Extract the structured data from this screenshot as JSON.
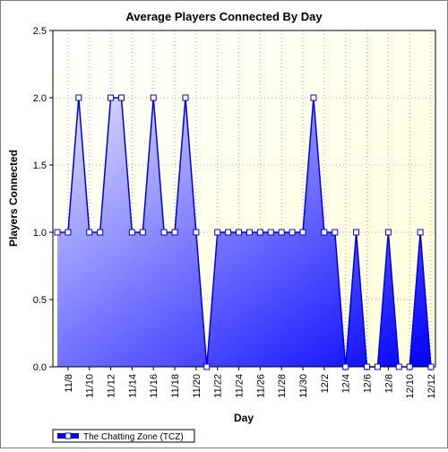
{
  "chart_data": {
    "type": "area",
    "title": "Average Players Connected By Day",
    "xlabel": "Day",
    "ylabel": "Players Connected",
    "ylim": [
      0,
      2.5
    ],
    "yticks": [
      "0.0",
      "0.5",
      "1.0",
      "1.5",
      "2.0",
      "2.5"
    ],
    "xtick_labels": [
      "11/8",
      "11/10",
      "11/12",
      "11/14",
      "11/16",
      "11/18",
      "11/20",
      "11/22",
      "11/24",
      "11/26",
      "11/28",
      "11/30",
      "12/2",
      "12/4",
      "12/6",
      "12/8",
      "12/10",
      "12/12"
    ],
    "x": [
      "11/7",
      "11/8",
      "11/9",
      "11/10",
      "11/11",
      "11/12",
      "11/13",
      "11/14",
      "11/15",
      "11/16",
      "11/17",
      "11/18",
      "11/19",
      "11/20",
      "11/21",
      "11/22",
      "11/23",
      "11/24",
      "11/25",
      "11/26",
      "11/27",
      "11/28",
      "11/29",
      "11/30",
      "12/1",
      "12/2",
      "12/3",
      "12/4",
      "12/5",
      "12/6",
      "12/7",
      "12/8",
      "12/9",
      "12/10",
      "12/11",
      "12/12"
    ],
    "series": [
      {
        "name": "The Chatting Zone (TCZ)",
        "values": [
          1,
          1,
          2,
          1,
          1,
          2,
          2,
          1,
          1,
          2,
          1,
          1,
          2,
          1,
          0,
          1,
          1,
          1,
          1,
          1,
          1,
          1,
          1,
          1,
          2,
          1,
          1,
          0,
          1,
          0,
          0,
          1,
          0,
          0,
          1,
          0
        ]
      }
    ],
    "grid": true,
    "legend_position": "bottom-left",
    "colors": {
      "line": "#0000dd",
      "fill_light": "#dcdcff",
      "fill_dark": "#0000ff",
      "plot_bg_top": "#ffffd8",
      "plot_bg_bottom": "#ffffff",
      "marker_fill": "#ffffff"
    }
  }
}
